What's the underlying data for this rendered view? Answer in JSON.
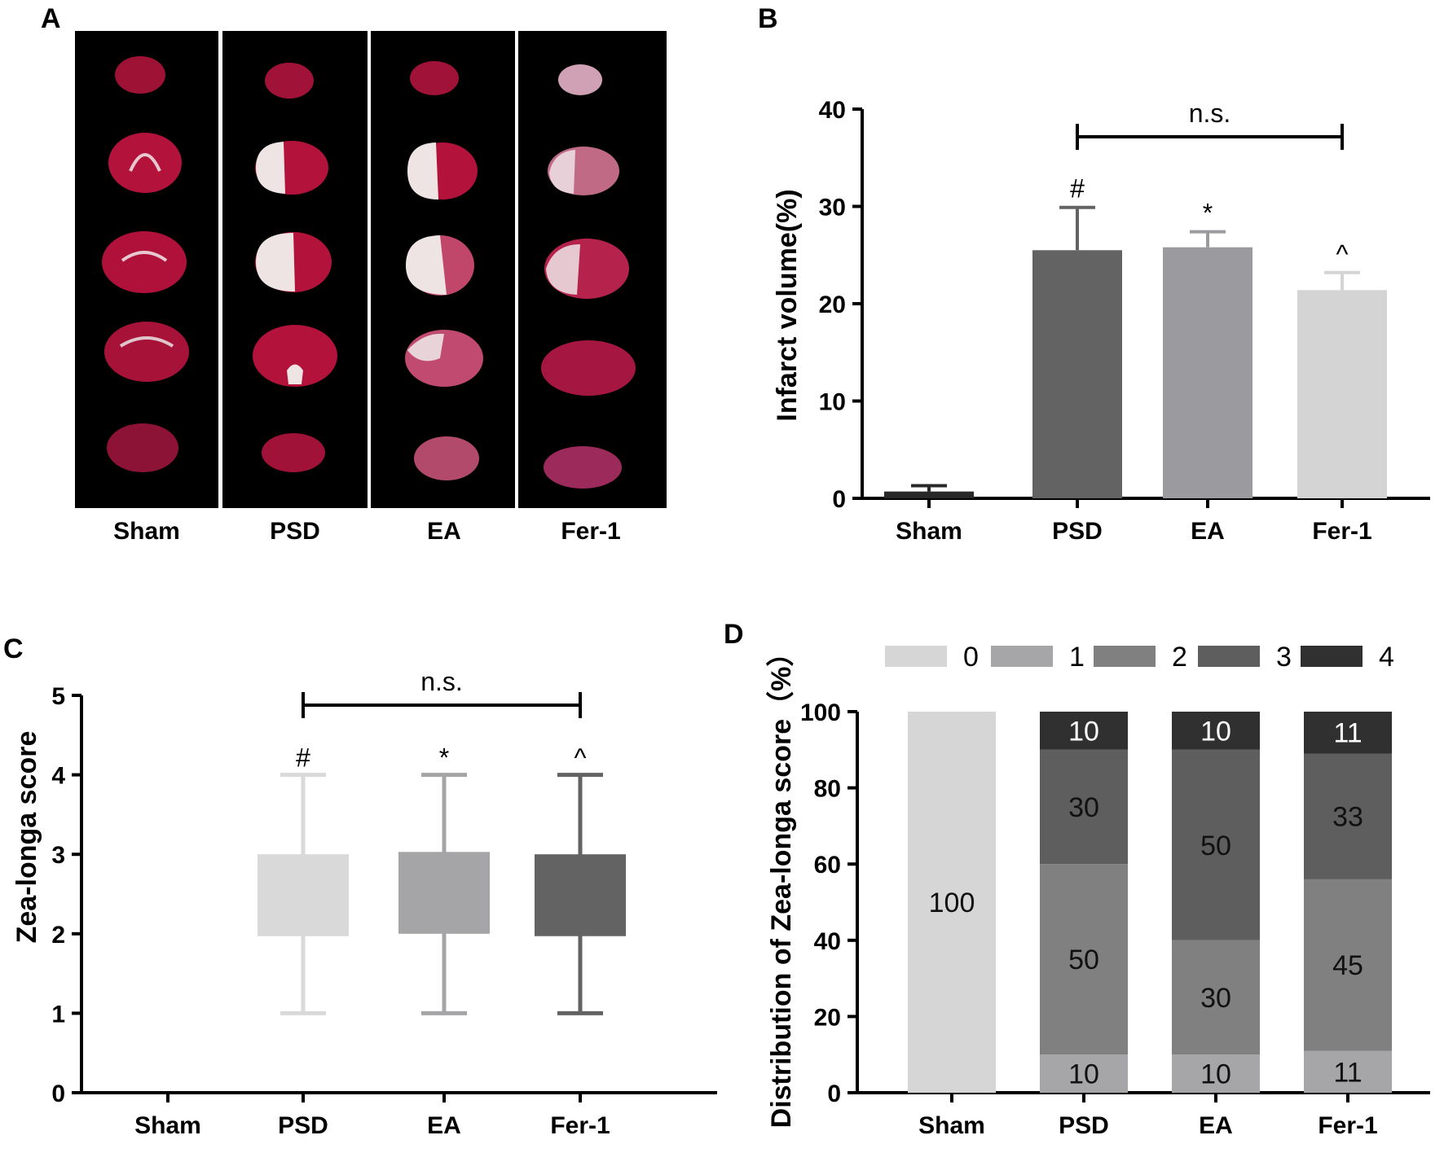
{
  "panel_labels": {
    "a": "A",
    "b": "B",
    "c": "C",
    "d": "D"
  },
  "colors": {
    "bar_sham": "#282828",
    "bar_psd": "#636363",
    "bar_ea": "#9b9b9f",
    "bar_fer1": "#d4d4d4",
    "box_psd": "#d9d9d9",
    "box_ea": "#a5a5a8",
    "box_fer1": "#636363",
    "score0": "#d6d6d6",
    "score1": "#a6a6a9",
    "score2": "#808080",
    "score3": "#5e5e5e",
    "score4": "#303030",
    "slice_tissue": "#b3123a",
    "slice_infarct": "#efe4e4"
  },
  "panel_a": {
    "type": "image-grid",
    "description_free": true,
    "groups": [
      "Sham",
      "PSD",
      "EA",
      "Fer-1"
    ],
    "slices_per_group": 5
  },
  "chart_data": [
    {
      "panel": "B",
      "type": "bar",
      "categories": [
        "Sham",
        "PSD",
        "EA",
        "Fer-1"
      ],
      "values": [
        0.7,
        25.5,
        25.8,
        21.4
      ],
      "errors": [
        0.6,
        4.4,
        1.6,
        1.8
      ],
      "ylabel": "Infarct volume(%)",
      "ylim": [
        0,
        40
      ],
      "yticks": [
        "0",
        "10",
        "20",
        "30",
        "40"
      ],
      "significance": [
        "",
        "#",
        "*",
        "^"
      ],
      "bracket": {
        "from": "PSD",
        "to": "Fer-1",
        "label": "n.s."
      }
    },
    {
      "panel": "C",
      "type": "box",
      "categories": [
        "Sham",
        "PSD",
        "EA",
        "Fer-1"
      ],
      "boxes": [
        null,
        {
          "min": 1,
          "q1": 1.97,
          "q3": 3.0,
          "max": 4
        },
        {
          "min": 1,
          "q1": 2.0,
          "q3": 3.03,
          "max": 4
        },
        {
          "min": 1,
          "q1": 1.97,
          "q3": 3.0,
          "max": 4
        }
      ],
      "ylabel": "Zea-longa score",
      "ylim": [
        0,
        5
      ],
      "yticks": [
        "0",
        "1",
        "2",
        "3",
        "4",
        "5"
      ],
      "significance": [
        "",
        "#",
        "*",
        "^"
      ],
      "bracket": {
        "from": "PSD",
        "to": "Fer-1",
        "label": "n.s."
      }
    },
    {
      "panel": "D",
      "type": "stacked-bar",
      "categories": [
        "Sham",
        "PSD",
        "EA",
        "Fer-1"
      ],
      "series": [
        {
          "name": "0",
          "values": [
            100,
            0,
            0,
            0
          ],
          "labels": [
            "100",
            "",
            "",
            ""
          ]
        },
        {
          "name": "1",
          "values": [
            0,
            10,
            10,
            11
          ],
          "labels": [
            "",
            "10",
            "10",
            "11"
          ]
        },
        {
          "name": "2",
          "values": [
            0,
            50,
            30,
            45
          ],
          "labels": [
            "",
            "50",
            "30",
            "45"
          ]
        },
        {
          "name": "3",
          "values": [
            0,
            30,
            50,
            33
          ],
          "labels": [
            "",
            "30",
            "50",
            "33"
          ]
        },
        {
          "name": "4",
          "values": [
            0,
            10,
            10,
            11
          ],
          "labels": [
            "",
            "10",
            "10",
            "11"
          ]
        }
      ],
      "ylabel": "Distribution of Zea-longa score（%）",
      "ylim": [
        0,
        100
      ],
      "yticks": [
        "0",
        "20",
        "40",
        "60",
        "80",
        "100"
      ],
      "legend_position": "top"
    }
  ]
}
